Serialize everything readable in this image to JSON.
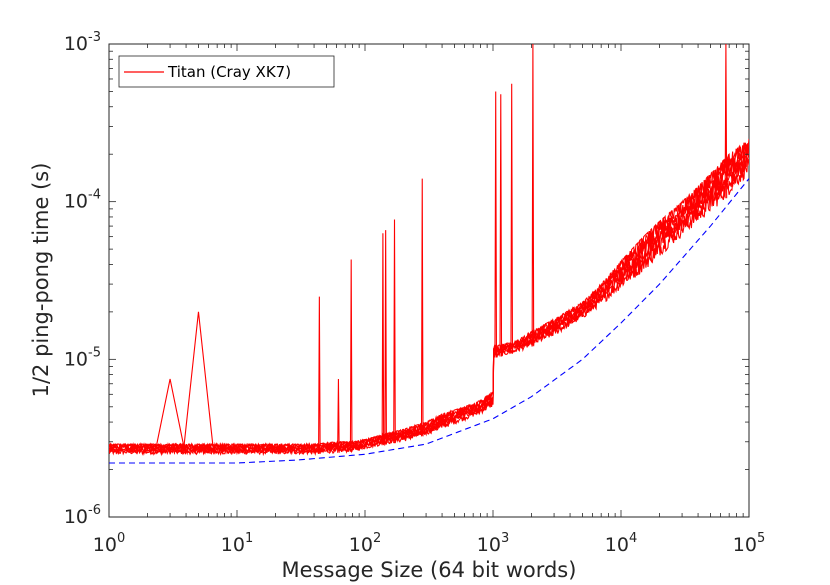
{
  "chart_data": {
    "type": "line",
    "title": "",
    "xlabel": "Message Size (64 bit words)",
    "ylabel": "1/2 ping-pong time (s)",
    "xscale": "log",
    "yscale": "log",
    "xlim": [
      1,
      100000
    ],
    "ylim": [
      1e-06,
      0.001
    ],
    "x_ticks": [
      {
        "base": "10",
        "exp": "0",
        "value": 1
      },
      {
        "base": "10",
        "exp": "1",
        "value": 10
      },
      {
        "base": "10",
        "exp": "2",
        "value": 100
      },
      {
        "base": "10",
        "exp": "3",
        "value": 1000
      },
      {
        "base": "10",
        "exp": "4",
        "value": 10000
      },
      {
        "base": "10",
        "exp": "5",
        "value": 100000
      }
    ],
    "y_ticks": [
      {
        "base": "10",
        "exp": "-6",
        "value": 1e-06
      },
      {
        "base": "10",
        "exp": "-5",
        "value": 1e-05
      },
      {
        "base": "10",
        "exp": "-4",
        "value": 0.0001
      },
      {
        "base": "10",
        "exp": "-3",
        "value": 0.001
      }
    ],
    "grid": false,
    "legend_position": "top-left",
    "series": [
      {
        "name": "Titan (Cray XK7)",
        "color": "#ff0000",
        "style": "solid",
        "x": [
          1,
          1.5,
          2,
          2.5,
          3,
          3.5,
          4,
          5,
          6,
          8,
          10,
          15,
          20,
          30,
          40,
          60,
          80,
          100,
          150,
          200,
          300,
          400,
          600,
          800,
          1000,
          1001,
          1200,
          1500,
          2000,
          3000,
          5000,
          7000,
          10000,
          15000,
          20000,
          30000,
          50000,
          70000,
          100000
        ],
        "y_low": [
          2.5e-06,
          2.5e-06,
          2.5e-06,
          2.5e-06,
          2.5e-06,
          2.5e-06,
          2.5e-06,
          2.5e-06,
          2.5e-06,
          2.5e-06,
          2.5e-06,
          2.5e-06,
          2.5e-06,
          2.5e-06,
          2.5e-06,
          2.55e-06,
          2.6e-06,
          2.7e-06,
          2.9e-06,
          3e-06,
          3.3e-06,
          3.6e-06,
          4.1e-06,
          4.5e-06,
          5e-06,
          1.02e-05,
          1.05e-05,
          1.1e-05,
          1.2e-05,
          1.4e-05,
          1.8e-05,
          2.2e-05,
          2.8e-05,
          3.6e-05,
          4.5e-05,
          6e-05,
          8.5e-05,
          0.00011,
          0.00015
        ],
        "y_high": [
          2.9e-06,
          2.9e-06,
          2.9e-06,
          2.9e-06,
          2.9e-06,
          2.9e-06,
          2.9e-06,
          2.9e-06,
          2.9e-06,
          2.9e-06,
          2.9e-06,
          2.9e-06,
          2.9e-06,
          2.9e-06,
          2.9e-06,
          3e-06,
          3e-06,
          3.1e-06,
          3.4e-06,
          3.6e-06,
          4e-06,
          4.5e-06,
          5e-06,
          5.5e-06,
          6.2e-06,
          1.2e-05,
          1.25e-05,
          1.3e-05,
          1.5e-05,
          1.8e-05,
          2.3e-05,
          3e-05,
          4.2e-05,
          6e-05,
          7.5e-05,
          0.0001,
          0.00015,
          0.0002,
          0.00025
        ],
        "spikes": [
          {
            "x": 3,
            "y": 7.5e-06
          },
          {
            "x": 5,
            "y": 2e-05
          },
          {
            "x": 44,
            "y": 2.5e-05
          },
          {
            "x": 62,
            "y": 7.5e-06
          },
          {
            "x": 78,
            "y": 4.3e-05
          },
          {
            "x": 138,
            "y": 6.3e-05
          },
          {
            "x": 145,
            "y": 6.6e-05
          },
          {
            "x": 170,
            "y": 7.7e-05
          },
          {
            "x": 280,
            "y": 0.00014
          },
          {
            "x": 1050,
            "y": 0.0005
          },
          {
            "x": 1150,
            "y": 0.00048
          },
          {
            "x": 1400,
            "y": 0.00056
          },
          {
            "x": 2050,
            "y": 0.001
          },
          {
            "x": 66000,
            "y": 0.001
          }
        ]
      },
      {
        "name": "",
        "color": "#0000ff",
        "style": "dashed",
        "x": [
          1,
          10,
          30,
          100,
          300,
          1000,
          2000,
          5000,
          10000,
          20000,
          50000,
          100000
        ],
        "y": [
          2.2e-06,
          2.2e-06,
          2.3e-06,
          2.5e-06,
          2.9e-06,
          4.2e-06,
          5.8e-06,
          1e-05,
          1.7e-05,
          3e-05,
          7e-05,
          0.00014
        ]
      }
    ]
  }
}
